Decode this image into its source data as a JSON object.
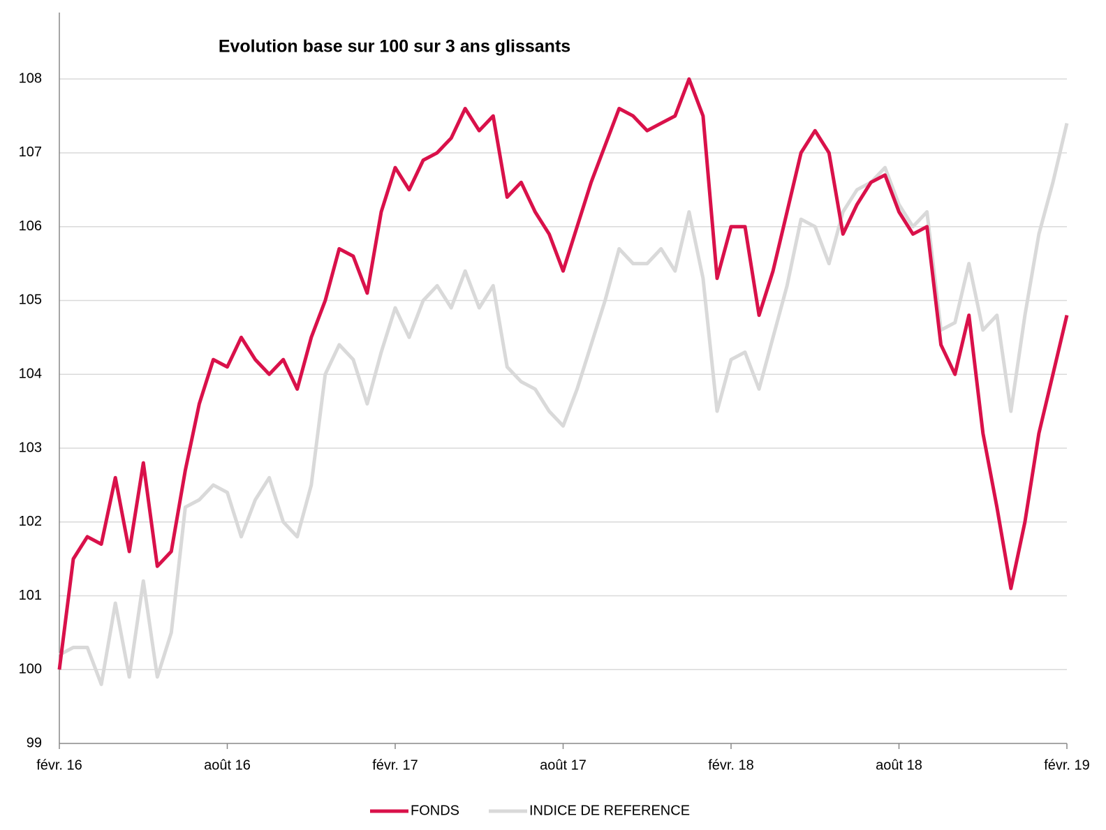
{
  "chart_data": {
    "type": "line",
    "title": "Evolution base sur 100 sur 3 ans glissants",
    "categories": [
      "févr. 16",
      null,
      null,
      null,
      null,
      null,
      null,
      null,
      null,
      null,
      null,
      null,
      "août 16",
      null,
      null,
      null,
      null,
      null,
      null,
      null,
      null,
      null,
      null,
      null,
      "févr. 17",
      null,
      null,
      null,
      null,
      null,
      null,
      null,
      null,
      null,
      null,
      null,
      "août 17",
      null,
      null,
      null,
      null,
      null,
      null,
      null,
      null,
      null,
      null,
      null,
      "févr. 18",
      null,
      null,
      null,
      null,
      null,
      null,
      null,
      null,
      null,
      null,
      null,
      "août 18",
      null,
      null,
      null,
      null,
      null,
      null,
      null,
      null,
      null,
      null,
      null,
      "févr. 19"
    ],
    "series": [
      {
        "name": "FONDS",
        "color": "#d9114a",
        "values": [
          100.0,
          101.5,
          101.8,
          101.7,
          102.6,
          101.6,
          102.8,
          101.4,
          101.6,
          102.7,
          103.6,
          104.2,
          104.1,
          104.5,
          104.2,
          104.0,
          104.2,
          103.8,
          104.5,
          105.0,
          105.7,
          105.6,
          105.1,
          106.2,
          106.8,
          106.5,
          106.9,
          107.0,
          107.2,
          107.6,
          107.3,
          107.5,
          106.4,
          106.6,
          106.2,
          105.9,
          105.4,
          106.0,
          106.6,
          107.1,
          107.6,
          107.5,
          107.3,
          107.4,
          107.5,
          108.0,
          107.5,
          105.3,
          106.0,
          106.0,
          104.8,
          105.4,
          106.2,
          107.0,
          107.3,
          107.0,
          105.9,
          106.3,
          106.6,
          106.7,
          106.2,
          105.9,
          106.0,
          104.4,
          104.0,
          104.8,
          103.2,
          102.2,
          101.1,
          102.0,
          103.2,
          104.0,
          104.8
        ]
      },
      {
        "name": "INDICE DE REFERENCE",
        "color": "#d9d9d9",
        "values": [
          100.2,
          100.3,
          100.3,
          99.8,
          100.9,
          99.9,
          101.2,
          99.9,
          100.5,
          102.2,
          102.3,
          102.5,
          102.4,
          101.8,
          102.3,
          102.6,
          102.0,
          101.8,
          102.5,
          104.0,
          104.4,
          104.2,
          103.6,
          104.3,
          104.9,
          104.5,
          105.0,
          105.2,
          104.9,
          105.4,
          104.9,
          105.2,
          104.1,
          103.9,
          103.8,
          103.5,
          103.3,
          103.8,
          104.4,
          105.0,
          105.7,
          105.5,
          105.5,
          105.7,
          105.4,
          106.2,
          105.3,
          103.5,
          104.2,
          104.3,
          103.8,
          104.5,
          105.2,
          106.1,
          106.0,
          105.5,
          106.2,
          106.5,
          106.6,
          106.8,
          106.3,
          106.0,
          106.2,
          104.6,
          104.7,
          105.5,
          104.6,
          104.8,
          103.5,
          104.8,
          105.9,
          106.6,
          107.4
        ]
      }
    ],
    "ylim": [
      99,
      108.9
    ],
    "yticks": [
      99,
      100,
      101,
      102,
      103,
      104,
      105,
      106,
      107,
      108
    ],
    "grid": true,
    "legend": "bottom"
  }
}
